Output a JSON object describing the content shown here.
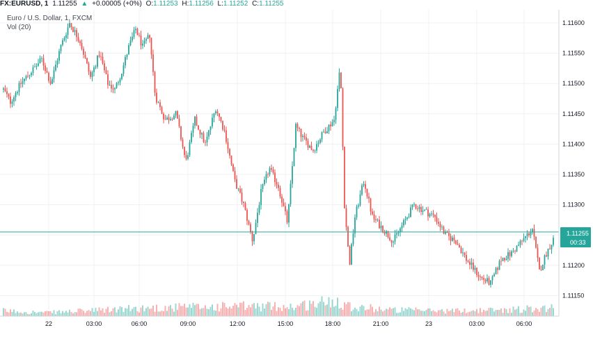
{
  "header": {
    "symbol": "FX:EURUSD, 1",
    "last": "1.11255",
    "change_arrow": "▲",
    "change": "+0.00005 (+0%)",
    "o_label": "O:",
    "o": "1.11253",
    "h_label": "H:",
    "h": "1.11256",
    "l_label": "L:",
    "l": "1.11252",
    "c_label": "C:",
    "c": "1.11255"
  },
  "legend": {
    "title": "Euro / U.S. Dollar, 1, FXCM",
    "volume": "Vol (20)"
  },
  "price_badge": {
    "value": "1.11255",
    "countdown": "00:33"
  },
  "colors": {
    "up": "#26a69a",
    "down": "#ef5350",
    "grid": "#eef0f4",
    "badge": "#26a69a"
  },
  "chart_data": {
    "type": "candlestick",
    "y_ticks": [
      "1.11600",
      "1.11550",
      "1.11500",
      "1.11450",
      "1.11400",
      "1.11350",
      "1.11300",
      "1.11250",
      "1.11200",
      "1.11150"
    ],
    "ylim": [
      1.1112,
      1.1162
    ],
    "x_ticks": [
      "22",
      "03:00",
      "06:00",
      "09:00",
      "12:00",
      "15:00",
      "18:00",
      "21:00",
      "23",
      "03:00",
      "06:00"
    ],
    "last_price": 1.11255,
    "series_anchors_price": [
      [
        0,
        1.1149
      ],
      [
        10,
        1.1147
      ],
      [
        25,
        1.115
      ],
      [
        40,
        1.1152
      ],
      [
        55,
        1.1154
      ],
      [
        68,
        1.115
      ],
      [
        82,
        1.1156
      ],
      [
        95,
        1.116
      ],
      [
        110,
        1.1157
      ],
      [
        125,
        1.1151
      ],
      [
        138,
        1.1155
      ],
      [
        150,
        1.115
      ],
      [
        160,
        1.1149
      ],
      [
        170,
        1.1152
      ],
      [
        180,
        1.1156
      ],
      [
        190,
        1.1159
      ],
      [
        200,
        1.1156
      ],
      [
        210,
        1.1158
      ],
      [
        218,
        1.1148
      ],
      [
        232,
        1.1144
      ],
      [
        248,
        1.1145
      ],
      [
        262,
        1.1137
      ],
      [
        275,
        1.1144
      ],
      [
        290,
        1.114
      ],
      [
        305,
        1.1146
      ],
      [
        318,
        1.1142
      ],
      [
        332,
        1.1134
      ],
      [
        345,
        1.113
      ],
      [
        358,
        1.1124
      ],
      [
        370,
        1.1132
      ],
      [
        382,
        1.1136
      ],
      [
        395,
        1.1133
      ],
      [
        408,
        1.1127
      ],
      [
        420,
        1.1143
      ],
      [
        430,
        1.1141
      ],
      [
        445,
        1.1139
      ],
      [
        460,
        1.1142
      ],
      [
        475,
        1.1144
      ],
      [
        484,
        1.1153
      ],
      [
        490,
        1.113
      ],
      [
        497,
        1.112
      ],
      [
        505,
        1.1128
      ],
      [
        518,
        1.1134
      ],
      [
        530,
        1.1128
      ],
      [
        545,
        1.1126
      ],
      [
        560,
        1.1124
      ],
      [
        575,
        1.1127
      ],
      [
        590,
        1.113
      ],
      [
        605,
        1.1129
      ],
      [
        620,
        1.1128
      ],
      [
        635,
        1.1125
      ],
      [
        650,
        1.1124
      ],
      [
        665,
        1.1121
      ],
      [
        685,
        1.1118
      ],
      [
        700,
        1.1117
      ],
      [
        715,
        1.1121
      ],
      [
        730,
        1.1122
      ],
      [
        745,
        1.1124
      ],
      [
        760,
        1.1126
      ],
      [
        770,
        1.1119
      ],
      [
        780,
        1.1122
      ],
      [
        795,
        1.11255
      ]
    ],
    "volume_anchors": [
      [
        0,
        0.3
      ],
      [
        60,
        0.2
      ],
      [
        120,
        0.3
      ],
      [
        200,
        0.45
      ],
      [
        260,
        0.5
      ],
      [
        340,
        0.55
      ],
      [
        420,
        0.55
      ],
      [
        480,
        0.9
      ],
      [
        500,
        0.55
      ],
      [
        560,
        0.35
      ],
      [
        640,
        0.3
      ],
      [
        720,
        0.35
      ],
      [
        795,
        0.5
      ]
    ]
  }
}
